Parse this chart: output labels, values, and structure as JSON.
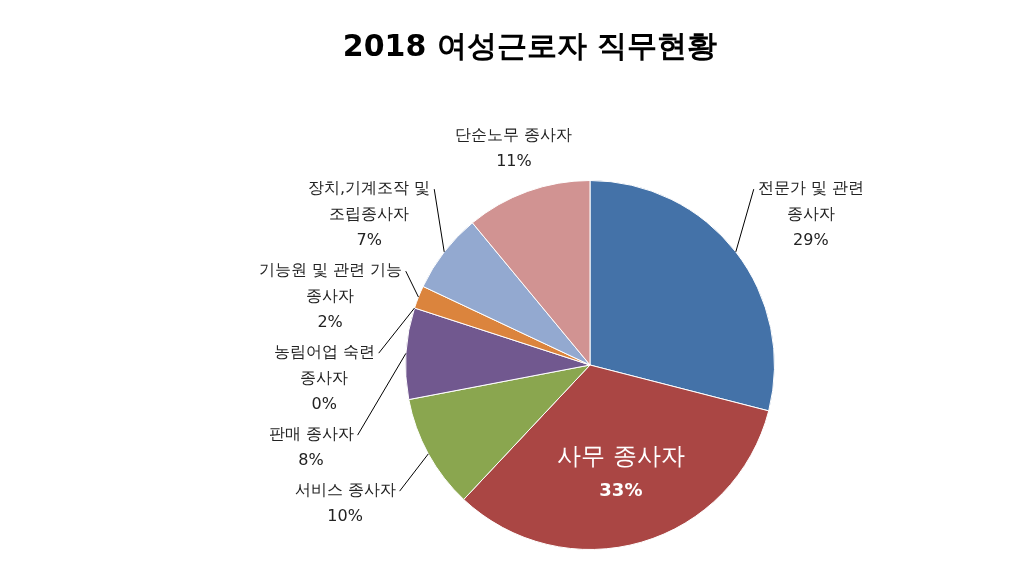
{
  "chart_data": {
    "type": "pie",
    "title": "2018 여성근로자 직무현황",
    "categories": [
      "전문가 및 관련 종사자",
      "사무 종사자",
      "서비스 종사자",
      "판매 종사자",
      "농림어업 숙련 종사자",
      "기능원 및 관련 기능 종사자",
      "장치,기계조작 및 조립종사자",
      "단순노무 종사자"
    ],
    "values": [
      29,
      33,
      10,
      8,
      0,
      2,
      7,
      11
    ],
    "value_labels": [
      "29%",
      "33%",
      "10%",
      "8%",
      "0%",
      "2%",
      "7%",
      "11%"
    ],
    "colors": [
      "#4472a8",
      "#aa4644",
      "#8aa64f",
      "#71588f",
      "#4198af",
      "#db843d",
      "#93a9d0",
      "#d19392"
    ],
    "legend": false
  }
}
